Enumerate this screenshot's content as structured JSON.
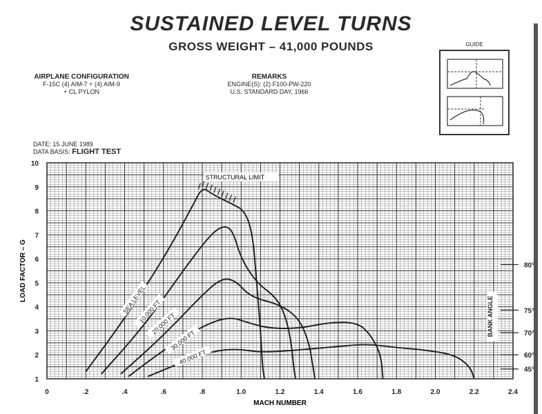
{
  "header": {
    "title": "SUSTAINED LEVEL TURNS",
    "subtitle": "GROSS WEIGHT – 41,000 POUNDS"
  },
  "airplane_configuration": {
    "heading": "AIRPLANE CONFIGURATION",
    "line1": "F-15C (4) AIM-7 + (4) AIM-9",
    "line2": "+ CL PYLON"
  },
  "remarks": {
    "heading": "REMARKS",
    "line1": "ENGINE(S): (2) F100-PW-220",
    "line2": "U.S. STANDARD DAY, 1966"
  },
  "guide": {
    "label": "GUIDE"
  },
  "date_info": {
    "date_label": "DATE:",
    "date_value": "15 JUNE 1989",
    "basis_label": "DATA BASIS:",
    "basis_value": "FLIGHT TEST"
  },
  "chart_data": {
    "type": "line",
    "title": "SUSTAINED LEVEL TURNS",
    "xlabel": "MACH NUMBER",
    "ylabel": "LOAD FACTOR – G",
    "xlim": [
      0,
      2.4
    ],
    "ylim": [
      1,
      10
    ],
    "x_ticks": [
      {
        "value": 0,
        "label": "0"
      },
      {
        "value": 0.2,
        "label": ".2"
      },
      {
        "value": 0.4,
        "label": ".4"
      },
      {
        "value": 0.6,
        "label": ".6"
      },
      {
        "value": 0.8,
        "label": ".8"
      },
      {
        "value": 1.0,
        "label": "1.0"
      },
      {
        "value": 1.2,
        "label": "1.2"
      },
      {
        "value": 1.4,
        "label": "1.4"
      },
      {
        "value": 1.6,
        "label": "1.6"
      },
      {
        "value": 1.8,
        "label": "1.8"
      },
      {
        "value": 2.0,
        "label": "2.0"
      },
      {
        "value": 2.2,
        "label": "2.2"
      },
      {
        "value": 2.4,
        "label": "2.4"
      }
    ],
    "y_ticks": [
      1,
      2,
      3,
      4,
      5,
      6,
      7,
      8,
      9,
      10
    ],
    "grid": true,
    "series": [
      {
        "name": "SEA LEVEL",
        "label_at": [
          0.45,
          4.3
        ],
        "x": [
          0.2,
          0.4,
          0.6,
          0.75,
          0.8,
          0.85,
          0.95,
          1.02,
          1.06,
          1.08,
          1.1,
          1.11,
          1.12
        ],
        "y": [
          1.3,
          3.5,
          6.0,
          8.2,
          9.0,
          8.7,
          8.3,
          8.0,
          7.0,
          5.0,
          3.0,
          1.5,
          1.0
        ]
      },
      {
        "name": "10,000 FT",
        "label_at": [
          0.53,
          3.8
        ],
        "x": [
          0.28,
          0.5,
          0.7,
          0.85,
          0.92,
          0.96,
          1.0,
          1.08,
          1.18,
          1.23,
          1.26,
          1.27,
          1.28
        ],
        "y": [
          1.2,
          3.2,
          5.5,
          7.1,
          7.4,
          7.1,
          6.0,
          5.0,
          4.4,
          3.6,
          2.4,
          1.5,
          1.0
        ]
      },
      {
        "name": "20,000 FT",
        "label_at": [
          0.6,
          3.3
        ],
        "x": [
          0.38,
          0.6,
          0.8,
          0.9,
          0.97,
          1.05,
          1.2,
          1.3,
          1.35,
          1.37,
          1.38
        ],
        "y": [
          1.2,
          2.8,
          4.5,
          5.2,
          5.1,
          4.4,
          4.1,
          3.5,
          2.5,
          1.5,
          1.0
        ]
      },
      {
        "name": "30,000 FT",
        "label_at": [
          0.7,
          2.6
        ],
        "x": [
          0.42,
          0.6,
          0.8,
          0.94,
          1.05,
          1.15,
          1.3,
          1.45,
          1.6,
          1.67,
          1.72,
          1.73
        ],
        "y": [
          1.1,
          2.2,
          3.2,
          3.6,
          3.3,
          3.1,
          3.1,
          3.35,
          3.35,
          2.8,
          2.0,
          1.0
        ]
      },
      {
        "name": "40,000 FT",
        "label_at": [
          0.75,
          1.9
        ],
        "x": [
          0.52,
          0.7,
          0.85,
          0.98,
          1.1,
          1.3,
          1.5,
          1.65,
          1.8,
          1.95,
          2.1,
          2.18,
          2.2
        ],
        "y": [
          1.1,
          1.7,
          2.15,
          2.25,
          2.1,
          2.2,
          2.35,
          2.45,
          2.3,
          2.2,
          2.0,
          1.5,
          1.0
        ]
      }
    ],
    "annotations": [
      {
        "text": "STRUCTURAL LIMIT",
        "at": [
          0.88,
          9.4
        ]
      }
    ],
    "bank_angle": {
      "label": "BANK ANGLE",
      "ticks": [
        {
          "g": 5.76,
          "label": "80°"
        },
        {
          "g": 3.86,
          "label": "75°"
        },
        {
          "g": 2.92,
          "label": "70°"
        },
        {
          "g": 2.0,
          "label": "60°"
        },
        {
          "g": 1.41,
          "label": "45°"
        }
      ]
    }
  }
}
